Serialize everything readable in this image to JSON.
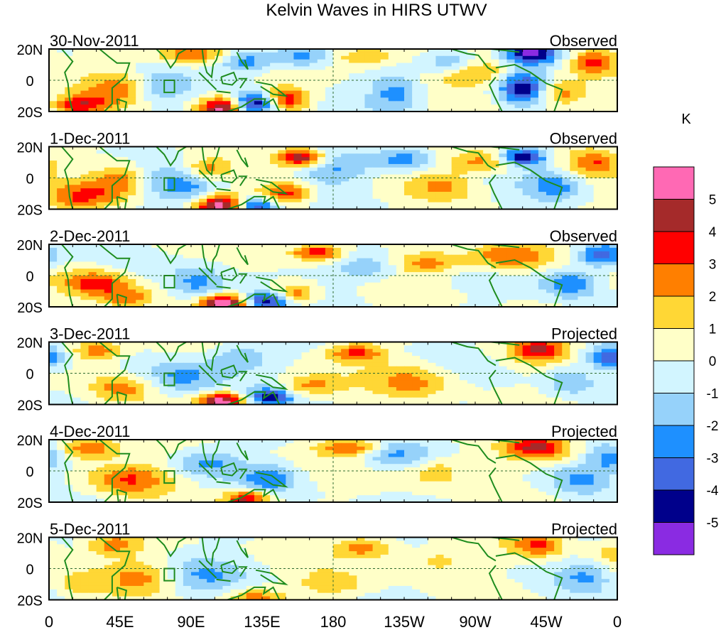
{
  "chart_data": {
    "type": "heatmap",
    "title": "Kelvin Waves in HIRS UTWV",
    "units_label": "K",
    "x_ticks": [
      "0",
      "45E",
      "90E",
      "135E",
      "180",
      "135W",
      "90W",
      "45W",
      "0"
    ],
    "y_ticks": [
      "20N",
      "0",
      "20S"
    ],
    "panels": [
      {
        "date": "30-Nov-2011",
        "status": "Observed"
      },
      {
        "date": "1-Dec-2011",
        "status": "Observed"
      },
      {
        "date": "2-Dec-2011",
        "status": "Observed"
      },
      {
        "date": "3-Dec-2011",
        "status": "Projected"
      },
      {
        "date": "4-Dec-2011",
        "status": "Projected"
      },
      {
        "date": "5-Dec-2011",
        "status": "Projected"
      }
    ],
    "colorbar": {
      "levels": [
        "5",
        "4",
        "3",
        "2",
        "1",
        "0",
        "-1",
        "-2",
        "-3",
        "-4",
        "-5"
      ],
      "colors": [
        "#ff69b4",
        "#a52a2a",
        "#ff0000",
        "#ff7f00",
        "#ffd735",
        "#ffffc8",
        "#d2f5ff",
        "#96d2fa",
        "#1e90ff",
        "#4169e1",
        "#00008b",
        "#8a2be2"
      ]
    }
  }
}
